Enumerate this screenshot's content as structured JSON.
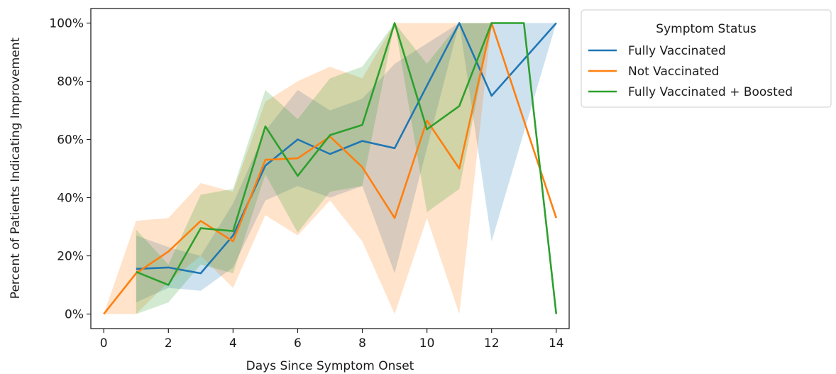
{
  "chart_data": {
    "type": "line",
    "xlabel": "Days Since Symptom Onset",
    "ylabel": "Percent of Patients Indicating Improvement",
    "xlim": [
      -0.4,
      14.4
    ],
    "ylim": [
      -0.05,
      1.05
    ],
    "x_ticks": [
      0,
      2,
      4,
      6,
      8,
      10,
      12,
      14
    ],
    "x_tick_labels": [
      "0",
      "2",
      "4",
      "6",
      "8",
      "10",
      "12",
      "14"
    ],
    "y_ticks": [
      0,
      0.2,
      0.4,
      0.6,
      0.8,
      1.0
    ],
    "y_tick_labels": [
      "0%",
      "20%",
      "40%",
      "60%",
      "80%",
      "100%"
    ],
    "grid": false,
    "legend": {
      "title": "Symptom Status",
      "placement": "outside-top-right"
    },
    "series": [
      {
        "name": "Fully Vaccinated",
        "color": "#1f77b4",
        "x": [
          1,
          2,
          3,
          4,
          5,
          6,
          7,
          8,
          9,
          11,
          12,
          14
        ],
        "y": [
          0.155,
          0.16,
          0.14,
          0.27,
          0.51,
          0.6,
          0.55,
          0.595,
          0.57,
          1.0,
          0.75,
          1.0
        ],
        "ci_lower": [
          0.04,
          0.09,
          0.08,
          0.16,
          0.39,
          0.44,
          0.4,
          0.44,
          0.14,
          1.0,
          0.25,
          1.0
        ],
        "ci_upper": [
          0.27,
          0.23,
          0.2,
          0.38,
          0.63,
          0.77,
          0.7,
          0.74,
          0.86,
          1.0,
          1.0,
          1.0
        ]
      },
      {
        "name": "Not Vaccinated",
        "color": "#ff7f0e",
        "x": [
          0,
          1,
          2,
          3,
          4,
          5,
          6,
          7,
          8,
          9,
          10,
          11,
          12,
          14
        ],
        "y": [
          0.0,
          0.14,
          0.215,
          0.32,
          0.25,
          0.53,
          0.535,
          0.61,
          0.505,
          0.33,
          0.665,
          0.5,
          1.0,
          0.33
        ],
        "ci_lower": [
          0.0,
          0.0,
          0.11,
          0.2,
          0.09,
          0.34,
          0.27,
          0.39,
          0.25,
          0.0,
          0.33,
          0.0,
          1.0,
          0.33
        ],
        "ci_upper": [
          0.0,
          0.32,
          0.33,
          0.45,
          0.42,
          0.73,
          0.8,
          0.85,
          0.81,
          1.0,
          1.0,
          1.0,
          1.0,
          0.33
        ]
      },
      {
        "name": "Fully Vaccinated + Boosted",
        "color": "#2ca02c",
        "x": [
          1,
          2,
          3,
          4,
          5,
          6,
          7,
          8,
          9,
          10,
          11,
          12,
          13,
          14
        ],
        "y": [
          0.145,
          0.1,
          0.295,
          0.285,
          0.645,
          0.475,
          0.615,
          0.65,
          1.0,
          0.635,
          0.715,
          1.0,
          1.0,
          0.0
        ],
        "ci_lower": [
          0.0,
          0.04,
          0.17,
          0.14,
          0.48,
          0.28,
          0.42,
          0.44,
          1.0,
          0.35,
          0.43,
          1.0,
          1.0,
          0.0
        ],
        "ci_upper": [
          0.29,
          0.17,
          0.41,
          0.43,
          0.77,
          0.67,
          0.81,
          0.85,
          1.0,
          0.86,
          1.0,
          1.0,
          1.0,
          0.0
        ]
      }
    ]
  }
}
